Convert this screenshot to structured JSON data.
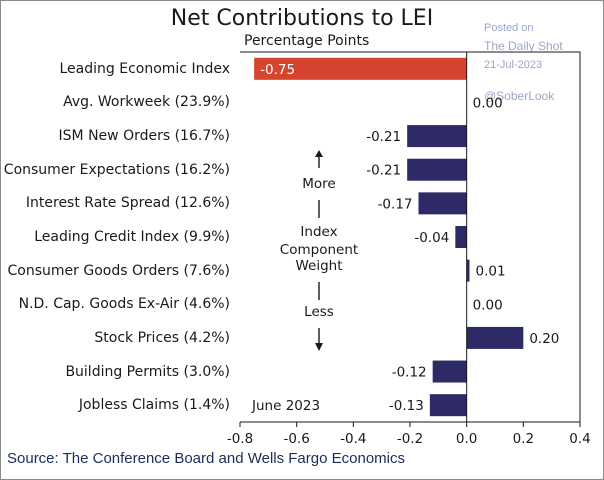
{
  "chart_data": {
    "type": "bar",
    "orientation": "horizontal",
    "title": "Net Contributions to LEI",
    "subtitle": "Percentage Points",
    "categories": [
      "Leading Economic Index",
      "Avg. Workweek (23.9%)",
      "ISM New Orders (16.7%)",
      "Consumer Expectations (16.2%)",
      "Interest Rate Spread (12.6%)",
      "Leading Credit Index (9.9%)",
      "Consumer Goods Orders (7.6%)",
      "N.D. Cap. Goods Ex-Air (4.6%)",
      "Stock Prices (4.2%)",
      "Building Permits (3.0%)",
      "Jobless Claims (1.4%)"
    ],
    "values": [
      -0.75,
      0.0,
      -0.21,
      -0.21,
      -0.17,
      -0.04,
      0.01,
      0.0,
      0.2,
      -0.12,
      -0.13
    ],
    "value_labels": [
      "-0.75",
      "0.00",
      "-0.21",
      "-0.21",
      "-0.17",
      "-0.04",
      "0.01",
      "0.00",
      "0.20",
      "-0.12",
      "-0.13"
    ],
    "xlim": [
      -0.8,
      0.4
    ],
    "xticks": [
      "-0.8",
      "-0.6",
      "-0.4",
      "-0.2",
      "0.0",
      "0.2",
      "0.4"
    ],
    "xtick_values": [
      -0.8,
      -0.6,
      -0.4,
      -0.2,
      0.0,
      0.2,
      0.4
    ],
    "colors": {
      "highlight": "#d6432e",
      "bar": "#2e2a66",
      "highlight_label": "#ffffff",
      "label": "#1a1a1a"
    },
    "annotation_lines": [
      "More",
      "Index",
      "Component",
      "Weight",
      "Less"
    ],
    "date_note": "June 2023",
    "source": "Source: The Conference Board and Wells Fargo Economics"
  },
  "watermark": {
    "posted": "Posted on",
    "site": "The Daily Shot",
    "date": "21-Jul-2023",
    "handle": "@SoberLook"
  }
}
